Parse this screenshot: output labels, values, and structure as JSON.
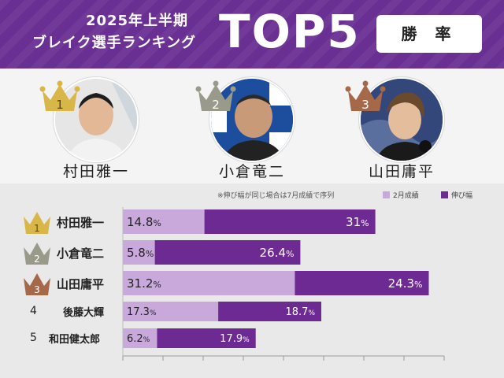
{
  "header": {
    "line1": "2025年上半期",
    "line2": "ブレイク選手ランキング",
    "big": "TOP5",
    "badge": "勝 率"
  },
  "podium": [
    {
      "rank": "1",
      "name": "村田雅一",
      "crown_color": "#d9b648"
    },
    {
      "rank": "2",
      "name": "小倉竜二",
      "crown_color": "#9a9a8a"
    },
    {
      "rank": "3",
      "name": "山田庸平",
      "crown_color": "#a5694a"
    }
  ],
  "note": "※伸び幅が同じ場合は7月成績で序列",
  "legend": [
    {
      "label": "2月成績",
      "color": "#c9a9dc"
    },
    {
      "label": "伸び幅",
      "color": "#6d2a93"
    }
  ],
  "chart_data": {
    "type": "bar",
    "orientation": "horizontal",
    "stacked": true,
    "categories": [
      "村田雅一",
      "小倉竜二",
      "山田庸平",
      "後藤大輝",
      "和田健太郎"
    ],
    "ranks": [
      "1",
      "2",
      "3",
      "4",
      "5"
    ],
    "series": [
      {
        "name": "2月成績",
        "values": [
          14.8,
          5.8,
          31.2,
          17.3,
          6.2
        ],
        "color": "#c9a9dc"
      },
      {
        "name": "伸び幅",
        "values": [
          31,
          26.4,
          24.3,
          18.7,
          17.9
        ],
        "color": "#6d2a93"
      }
    ],
    "unit": "%",
    "xlim": [
      0,
      58
    ]
  }
}
